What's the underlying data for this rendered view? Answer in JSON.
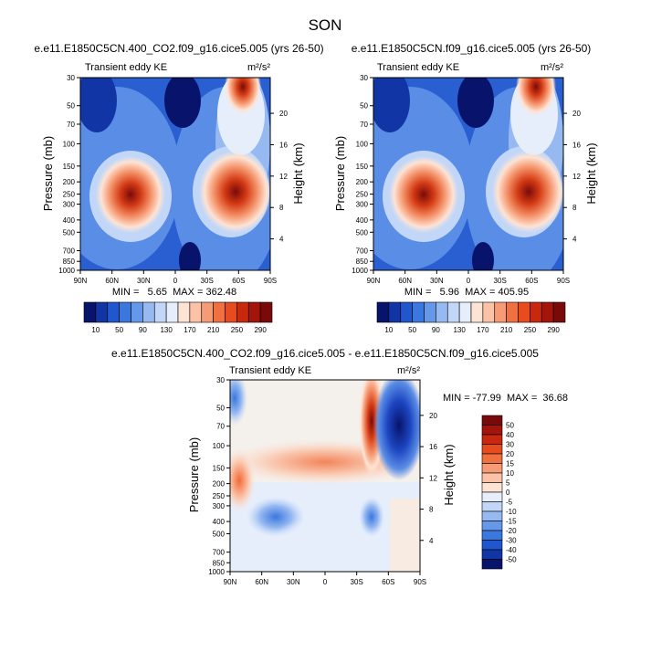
{
  "page_title": "SON",
  "colors": {
    "cold_dark": "#08136b",
    "cold": "#3a66d8",
    "neutral": "#f4f0ec",
    "warm": "#f0632d",
    "warm_dark": "#7a0a0a"
  },
  "chart_data": [
    {
      "type": "heatmap",
      "title": "e.e11.E1850C5CN.400_CO2.f09_g16.cice5.005 (yrs 26-50)",
      "subtitle_left": "Transient eddy KE",
      "units": "m²/s²",
      "xlabel": "",
      "ylabel": "Pressure (mb)",
      "ylabel_right": "Height (km)",
      "x_ticks": [
        "90N",
        "60N",
        "30N",
        "0",
        "30S",
        "60S",
        "90S"
      ],
      "y_ticks": [
        "30",
        "50",
        "70",
        "100",
        "150",
        "200",
        "250",
        "300",
        "400",
        "500",
        "700",
        "850",
        "1000"
      ],
      "y2_ticks": [
        "20",
        "16",
        "12",
        "8",
        "4"
      ],
      "stats": "MIN =   5.65  MAX = 362.48",
      "min": 5.65,
      "max": 362.48,
      "colorbar": {
        "labels": [
          "10",
          "50",
          "90",
          "130",
          "170",
          "210",
          "250",
          "290"
        ],
        "colors": [
          "#08136b",
          "#1235a6",
          "#2057cf",
          "#3a77de",
          "#6698e9",
          "#96b9f1",
          "#c2d7f8",
          "#e6eefc",
          "#fde3d4",
          "#fbc2a7",
          "#f69b76",
          "#f0703f",
          "#e64c1d",
          "#c8290e",
          "#a3150a",
          "#7a0a0a"
        ]
      }
    },
    {
      "type": "heatmap",
      "title": "e.e11.E1850C5CN.f09_g16.cice5.005 (yrs 26-50)",
      "subtitle_left": "Transient eddy KE",
      "units": "m²/s²",
      "xlabel": "",
      "ylabel": "Pressure (mb)",
      "ylabel_right": "Height (km)",
      "x_ticks": [
        "90N",
        "60N",
        "30N",
        "0",
        "30S",
        "60S",
        "90S"
      ],
      "y_ticks": [
        "30",
        "50",
        "70",
        "100",
        "150",
        "200",
        "250",
        "300",
        "400",
        "500",
        "700",
        "850",
        "1000"
      ],
      "y2_ticks": [
        "20",
        "16",
        "12",
        "8",
        "4"
      ],
      "stats": "MIN =   5.96  MAX = 405.95",
      "min": 5.96,
      "max": 405.95,
      "colorbar": {
        "labels": [
          "10",
          "50",
          "90",
          "130",
          "170",
          "210",
          "250",
          "290"
        ],
        "colors": [
          "#08136b",
          "#1235a6",
          "#2057cf",
          "#3a77de",
          "#6698e9",
          "#96b9f1",
          "#c2d7f8",
          "#e6eefc",
          "#fde3d4",
          "#fbc2a7",
          "#f69b76",
          "#f0703f",
          "#e64c1d",
          "#c8290e",
          "#a3150a",
          "#7a0a0a"
        ]
      }
    },
    {
      "type": "heatmap",
      "title": "e.e11.E1850C5CN.400_CO2.f09_g16.cice5.005 - e.e11.E1850C5CN.f09_g16.cice5.005",
      "subtitle_left": "Transient eddy KE",
      "units": "m²/s²",
      "xlabel": "",
      "ylabel": "Pressure (mb)",
      "ylabel_right": "Height (km)",
      "x_ticks": [
        "90N",
        "60N",
        "30N",
        "0",
        "30S",
        "60S",
        "90S"
      ],
      "y_ticks": [
        "30",
        "50",
        "70",
        "100",
        "150",
        "200",
        "250",
        "300",
        "400",
        "500",
        "700",
        "850",
        "1000"
      ],
      "y2_ticks": [
        "20",
        "16",
        "12",
        "8",
        "4"
      ],
      "stats": "MIN = -77.99  MAX =  36.68",
      "min": -77.99,
      "max": 36.68,
      "colorbar": {
        "labels": [
          "50",
          "40",
          "30",
          "20",
          "15",
          "10",
          "5",
          "0",
          "-5",
          "-10",
          "-15",
          "-20",
          "-30",
          "-40",
          "-50"
        ],
        "colors": [
          "#7a0a0a",
          "#a3150a",
          "#c8290e",
          "#e64c1d",
          "#f0703f",
          "#f69b76",
          "#fbc2a7",
          "#fde3d4",
          "#e6eefc",
          "#c2d7f8",
          "#96b9f1",
          "#6698e9",
          "#3a77de",
          "#2057cf",
          "#1235a6",
          "#08136b"
        ]
      }
    }
  ]
}
